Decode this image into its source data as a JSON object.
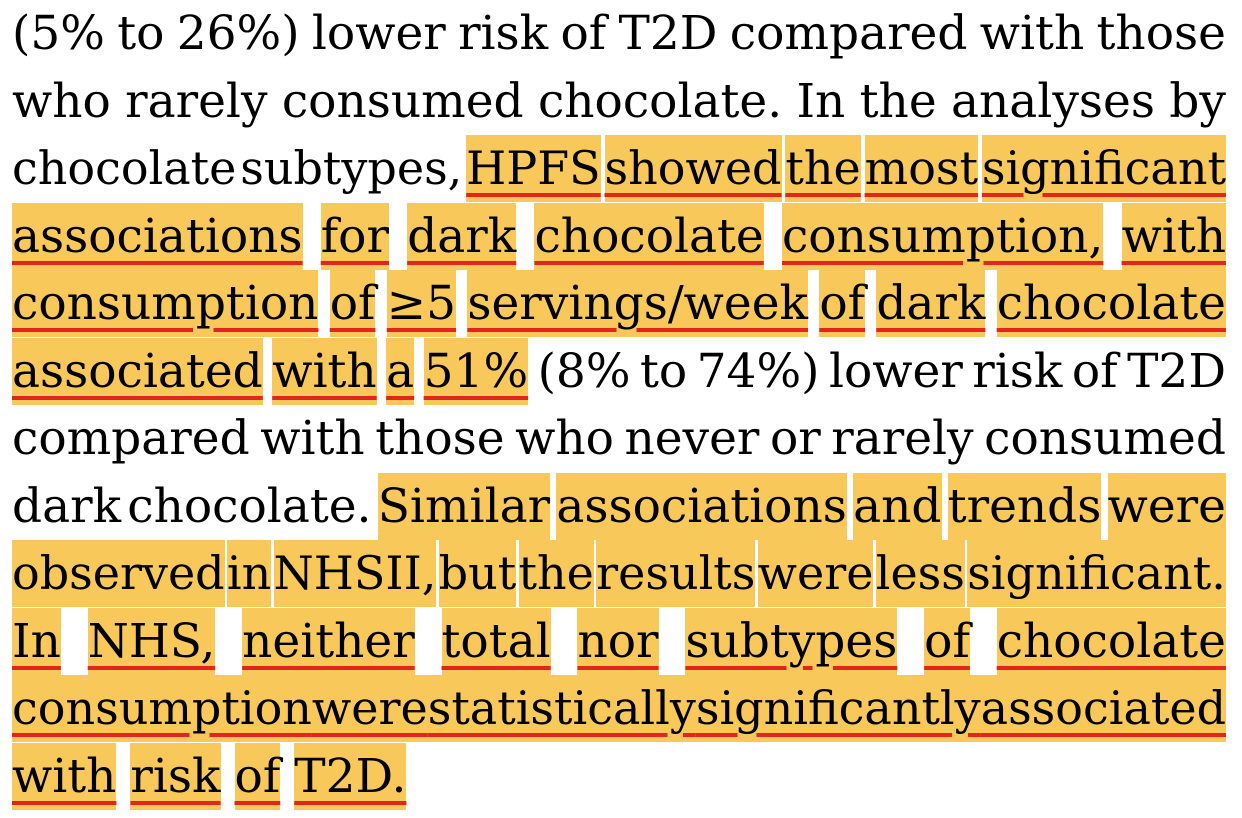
{
  "document": {
    "lines": [
      {
        "justify": true,
        "words": [
          {
            "t": "(5%",
            "hl": false,
            "ul": false
          },
          {
            "t": "to",
            "hl": false,
            "ul": false
          },
          {
            "t": "26%)",
            "hl": false,
            "ul": false
          },
          {
            "t": "lower",
            "hl": false,
            "ul": false
          },
          {
            "t": "risk",
            "hl": false,
            "ul": false
          },
          {
            "t": "of",
            "hl": false,
            "ul": false
          },
          {
            "t": "T2D",
            "hl": false,
            "ul": false
          },
          {
            "t": "compared",
            "hl": false,
            "ul": false
          },
          {
            "t": "with",
            "hl": false,
            "ul": false
          },
          {
            "t": "those",
            "hl": false,
            "ul": false
          }
        ]
      },
      {
        "justify": true,
        "words": [
          {
            "t": "who",
            "hl": false,
            "ul": false
          },
          {
            "t": "rarely",
            "hl": false,
            "ul": false
          },
          {
            "t": "consumed",
            "hl": false,
            "ul": false
          },
          {
            "t": "chocolate.",
            "hl": false,
            "ul": false
          },
          {
            "t": "In",
            "hl": false,
            "ul": false
          },
          {
            "t": "the",
            "hl": false,
            "ul": false
          },
          {
            "t": "analyses",
            "hl": false,
            "ul": false
          },
          {
            "t": "by",
            "hl": false,
            "ul": false
          }
        ]
      },
      {
        "justify": true,
        "words": [
          {
            "t": "chocolate",
            "hl": false,
            "ul": false
          },
          {
            "t": "subtypes,",
            "hl": false,
            "ul": false
          },
          {
            "t": "HPFS",
            "hl": true,
            "ul": true
          },
          {
            "t": "showed",
            "hl": true,
            "ul": true
          },
          {
            "t": "the",
            "hl": true,
            "ul": true
          },
          {
            "t": "most",
            "hl": true,
            "ul": true
          },
          {
            "t": "significant",
            "hl": true,
            "ul": true
          }
        ]
      },
      {
        "justify": true,
        "words": [
          {
            "t": "associations",
            "hl": true,
            "ul": true
          },
          {
            "t": "for",
            "hl": true,
            "ul": true
          },
          {
            "t": "dark",
            "hl": true,
            "ul": true
          },
          {
            "t": "chocolate",
            "hl": true,
            "ul": true
          },
          {
            "t": "consumption,",
            "hl": true,
            "ul": true
          },
          {
            "t": "with",
            "hl": true,
            "ul": true
          }
        ]
      },
      {
        "justify": true,
        "words": [
          {
            "t": "consumption",
            "hl": true,
            "ul": true
          },
          {
            "t": "of",
            "hl": true,
            "ul": true
          },
          {
            "t": "≥5",
            "hl": true,
            "ul": true
          },
          {
            "t": "servings/week",
            "hl": true,
            "ul": true
          },
          {
            "t": "of",
            "hl": true,
            "ul": true
          },
          {
            "t": "dark",
            "hl": true,
            "ul": true
          },
          {
            "t": "chocolate",
            "hl": true,
            "ul": true
          }
        ]
      },
      {
        "justify": true,
        "words": [
          {
            "t": "associated",
            "hl": true,
            "ul": true
          },
          {
            "t": "with",
            "hl": true,
            "ul": true
          },
          {
            "t": "a",
            "hl": true,
            "ul": true
          },
          {
            "t": "51%",
            "hl": true,
            "ul": true
          },
          {
            "t": "(8%",
            "hl": false,
            "ul": false
          },
          {
            "t": "to",
            "hl": false,
            "ul": false
          },
          {
            "t": "74%)",
            "hl": false,
            "ul": false
          },
          {
            "t": "lower",
            "hl": false,
            "ul": false
          },
          {
            "t": "risk",
            "hl": false,
            "ul": false
          },
          {
            "t": "of",
            "hl": false,
            "ul": false
          },
          {
            "t": "T2D",
            "hl": false,
            "ul": false
          }
        ]
      },
      {
        "justify": true,
        "words": [
          {
            "t": "compared",
            "hl": false,
            "ul": false
          },
          {
            "t": "with",
            "hl": false,
            "ul": false
          },
          {
            "t": "those",
            "hl": false,
            "ul": false
          },
          {
            "t": "who",
            "hl": false,
            "ul": false
          },
          {
            "t": "never",
            "hl": false,
            "ul": false
          },
          {
            "t": "or",
            "hl": false,
            "ul": false
          },
          {
            "t": "rarely",
            "hl": false,
            "ul": false
          },
          {
            "t": "consumed",
            "hl": false,
            "ul": false
          }
        ]
      },
      {
        "justify": true,
        "words": [
          {
            "t": "dark",
            "hl": false,
            "ul": false
          },
          {
            "t": "chocolate.",
            "hl": false,
            "ul": false
          },
          {
            "t": "Similar",
            "hl": true,
            "ul": false
          },
          {
            "t": "associations",
            "hl": true,
            "ul": false
          },
          {
            "t": "and",
            "hl": true,
            "ul": false
          },
          {
            "t": "trends",
            "hl": true,
            "ul": false
          },
          {
            "t": "were",
            "hl": true,
            "ul": false
          }
        ]
      },
      {
        "justify": true,
        "words": [
          {
            "t": "observed",
            "hl": true,
            "ul": false
          },
          {
            "t": "in",
            "hl": true,
            "ul": false
          },
          {
            "t": "NHSII,",
            "hl": true,
            "ul": false
          },
          {
            "t": "but",
            "hl": true,
            "ul": false
          },
          {
            "t": "the",
            "hl": true,
            "ul": false
          },
          {
            "t": "results",
            "hl": true,
            "ul": false
          },
          {
            "t": "were",
            "hl": true,
            "ul": false
          },
          {
            "t": "less",
            "hl": true,
            "ul": false
          },
          {
            "t": "significant.",
            "hl": true,
            "ul": false
          }
        ]
      },
      {
        "justify": true,
        "words": [
          {
            "t": "In",
            "hl": true,
            "ul": true
          },
          {
            "t": "NHS,",
            "hl": true,
            "ul": true
          },
          {
            "t": "neither",
            "hl": true,
            "ul": true
          },
          {
            "t": "total",
            "hl": true,
            "ul": true
          },
          {
            "t": "nor",
            "hl": true,
            "ul": true
          },
          {
            "t": "subtypes",
            "hl": true,
            "ul": true
          },
          {
            "t": "of",
            "hl": true,
            "ul": true
          },
          {
            "t": "chocolate",
            "hl": true,
            "ul": true
          }
        ]
      },
      {
        "justify": true,
        "words": [
          {
            "t": "consumption",
            "hl": true,
            "ul": true
          },
          {
            "t": "were",
            "hl": true,
            "ul": true
          },
          {
            "t": "statistically",
            "hl": true,
            "ul": true
          },
          {
            "t": "significantly",
            "hl": true,
            "ul": true
          },
          {
            "t": "associated",
            "hl": true,
            "ul": true
          }
        ]
      },
      {
        "justify": false,
        "words": [
          {
            "t": "with",
            "hl": true,
            "ul": true
          },
          {
            "t": "risk",
            "hl": true,
            "ul": true
          },
          {
            "t": "of",
            "hl": true,
            "ul": true
          },
          {
            "t": "T2D.",
            "hl": true,
            "ul": true
          }
        ]
      }
    ],
    "colors": {
      "highlight": "#f8c85a",
      "underline": "#e3261b",
      "text": "#000000"
    }
  }
}
